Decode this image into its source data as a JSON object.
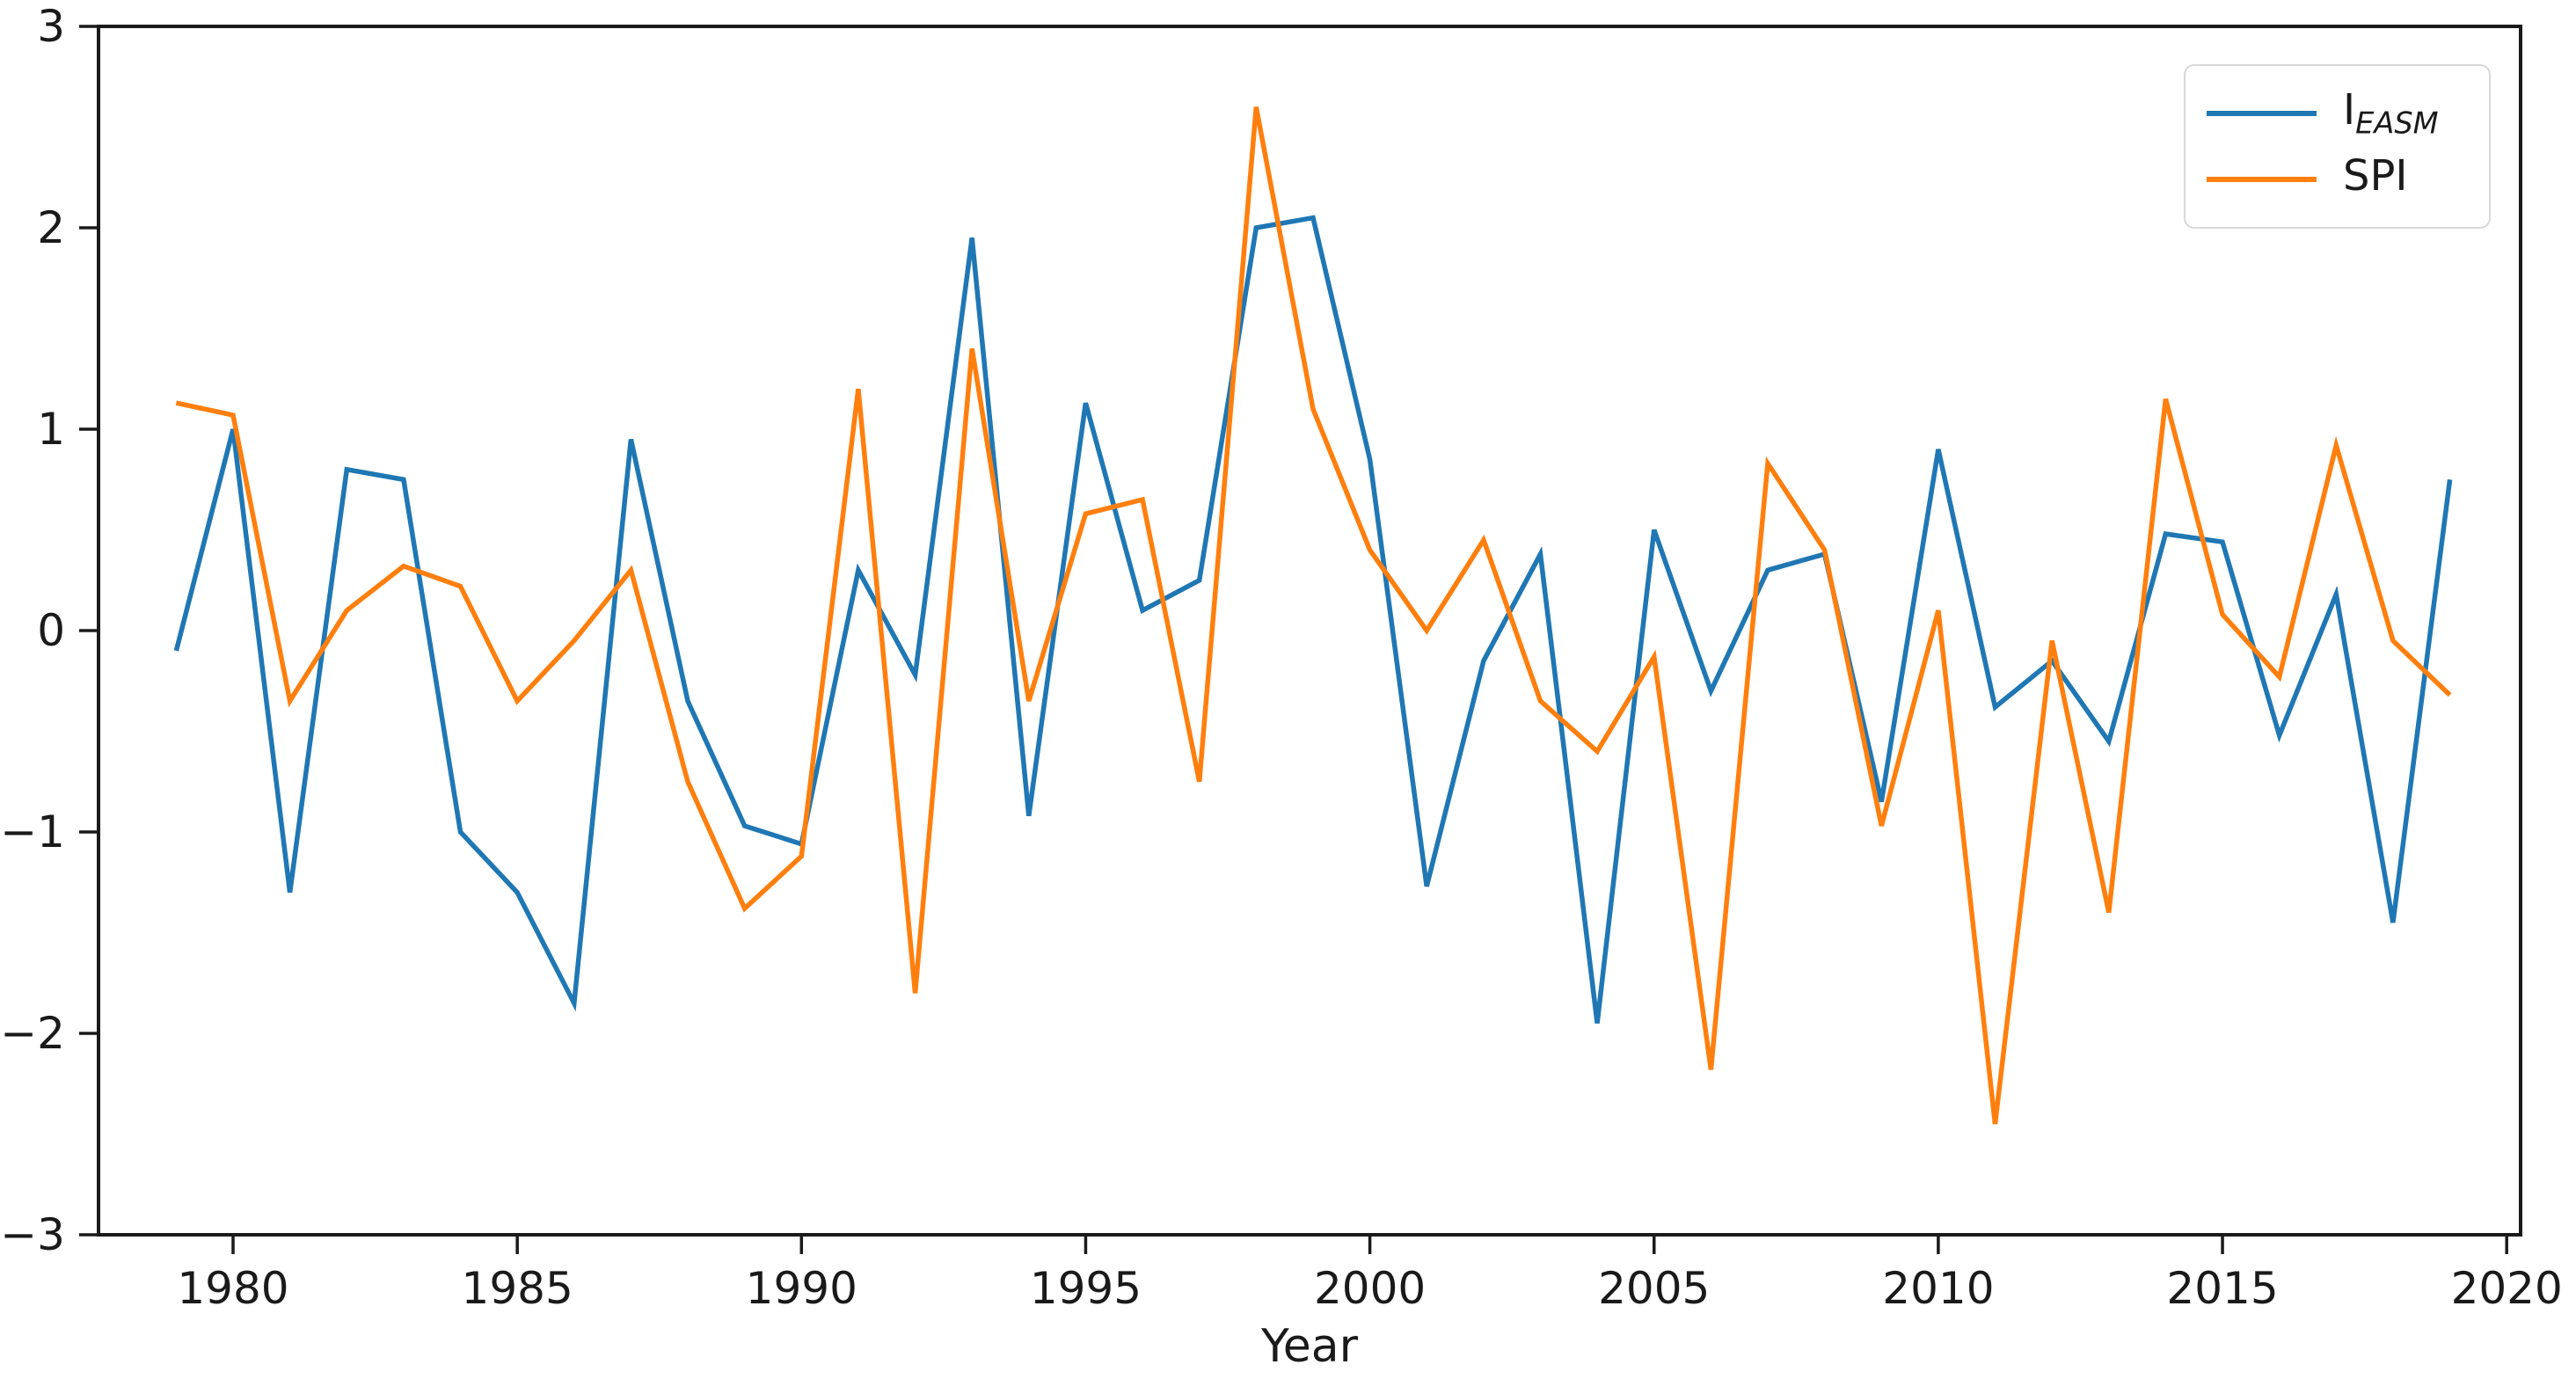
{
  "figure": {
    "type": "line-chart",
    "background": "#ffffff",
    "axis_color": "#1a1a1a",
    "xlabel": "Year"
  },
  "axes": {
    "x_ticks": [
      1980,
      1985,
      1990,
      1995,
      2000,
      2005,
      2010,
      2015,
      2020
    ],
    "x_tick_labels": [
      "1980",
      "1985",
      "1990",
      "1995",
      "2000",
      "2005",
      "2010",
      "2015",
      "2020"
    ],
    "y_ticks": [
      -3,
      -2,
      -1,
      0,
      1,
      2,
      3
    ],
    "y_tick_labels": [
      "−3",
      "−2",
      "−1",
      "0",
      "1",
      "2",
      "3"
    ],
    "xlim": [
      1978.6,
      2020.3
    ],
    "ylim": [
      -3,
      3
    ]
  },
  "legend": {
    "position": "upper right",
    "items": [
      {
        "label_main": "I",
        "label_sub": "EASM",
        "color": "#1f77b4"
      },
      {
        "label_main": "SPI",
        "label_sub": "",
        "color": "#ff7f0e"
      }
    ]
  },
  "chart_data": {
    "type": "line",
    "title": "",
    "xlabel": "Year",
    "ylabel": "",
    "xlim": [
      1978.6,
      2020.3
    ],
    "ylim": [
      -3,
      3
    ],
    "grid": false,
    "legend_position": "upper right",
    "x": [
      1979,
      1980,
      1981,
      1982,
      1983,
      1984,
      1985,
      1986,
      1987,
      1988,
      1989,
      1990,
      1991,
      1992,
      1993,
      1994,
      1995,
      1996,
      1997,
      1998,
      1999,
      2000,
      2001,
      2002,
      2003,
      2004,
      2005,
      2006,
      2007,
      2008,
      2009,
      2010,
      2011,
      2012,
      2013,
      2014,
      2015,
      2016,
      2017,
      2018,
      2019
    ],
    "series": [
      {
        "name": "I_EASM",
        "color": "#1f77b4",
        "values": [
          -0.1,
          1.0,
          -1.3,
          0.8,
          0.75,
          -1.0,
          -1.3,
          -1.85,
          0.95,
          -0.35,
          -0.97,
          -1.06,
          0.3,
          -0.22,
          1.95,
          -0.92,
          1.13,
          0.1,
          0.25,
          2.0,
          2.05,
          0.85,
          -1.27,
          -0.15,
          0.38,
          -1.95,
          0.5,
          -0.3,
          0.3,
          0.38,
          -0.85,
          0.9,
          -0.38,
          -0.15,
          -0.55,
          0.48,
          0.44,
          -0.52,
          0.18,
          -1.45,
          0.75
        ]
      },
      {
        "name": "SPI",
        "color": "#ff7f0e",
        "values": [
          1.13,
          1.07,
          -0.35,
          0.1,
          0.32,
          0.22,
          -0.35,
          -0.05,
          0.3,
          -0.75,
          -1.38,
          -1.12,
          1.2,
          -1.8,
          1.4,
          -0.35,
          0.58,
          0.65,
          -0.75,
          2.6,
          1.1,
          0.4,
          0.0,
          0.45,
          -0.35,
          -0.6,
          -0.13,
          -2.18,
          0.83,
          0.4,
          -0.97,
          0.1,
          -2.45,
          -0.05,
          -1.4,
          1.15,
          0.08,
          -0.23,
          0.92,
          -0.05,
          -0.32
        ]
      }
    ]
  }
}
